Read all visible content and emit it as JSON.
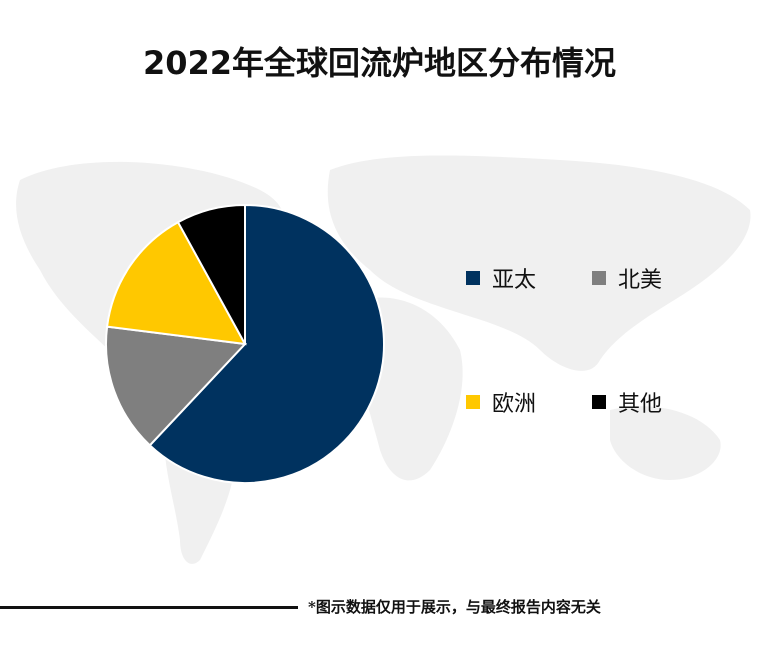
{
  "title": "2022年全球回流炉地区分布情况",
  "chart_data": {
    "type": "pie",
    "title": "2022年全球回流炉地区分布情况",
    "slices": [
      {
        "label": "亚太",
        "value": 62,
        "color": "#00325f"
      },
      {
        "label": "北美",
        "value": 15,
        "color": "#7f7f7f"
      },
      {
        "label": "欧洲",
        "value": 15,
        "color": "#ffc800"
      },
      {
        "label": "其他",
        "value": 8,
        "color": "#000000"
      }
    ],
    "legend": "right"
  },
  "footnote": "*图示数据仅用于展示，与最终报告内容无关"
}
